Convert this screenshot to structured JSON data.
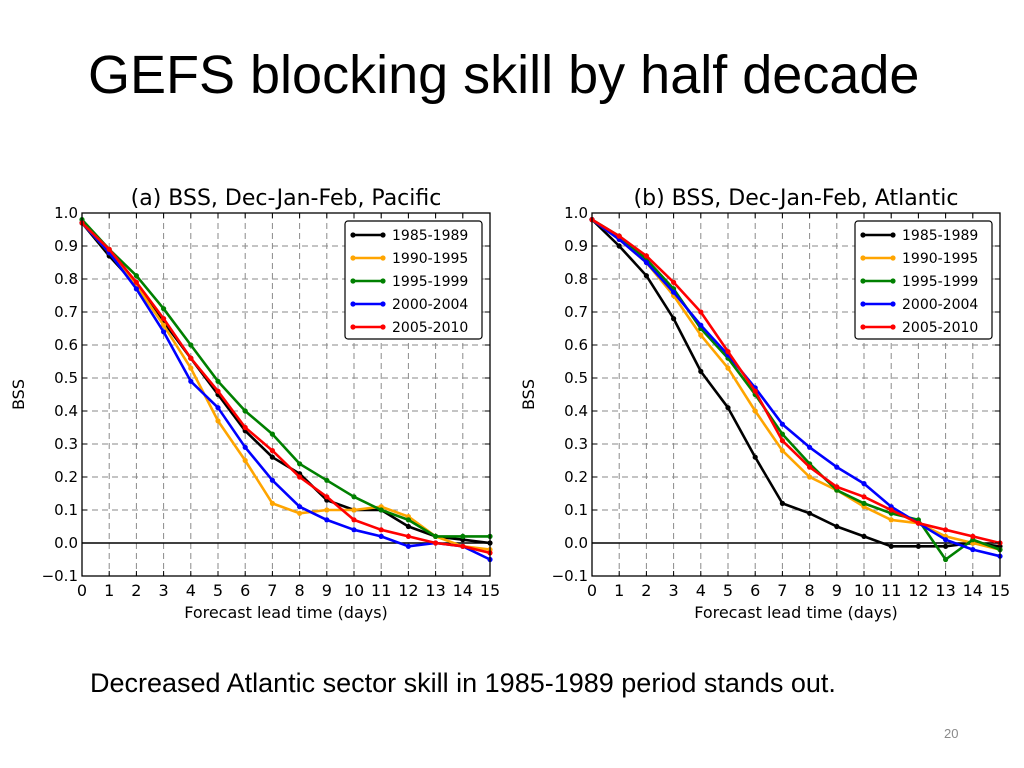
{
  "slide": {
    "title": "GEFS blocking skill by half decade",
    "caption": "Decreased Atlantic sector skill in 1985-1989 period stands out.",
    "page_number": "20"
  },
  "chart_data": [
    {
      "type": "line",
      "title": "(a) BSS, Dec-Jan-Feb, Pacific",
      "xlabel": "Forecast lead time (days)",
      "ylabel": "BSS",
      "xlim": [
        0,
        15
      ],
      "ylim": [
        -0.1,
        1.0
      ],
      "xticks": [
        "0",
        "1",
        "2",
        "3",
        "4",
        "5",
        "6",
        "7",
        "8",
        "9",
        "10",
        "11",
        "12",
        "13",
        "14",
        "15"
      ],
      "yticks": [
        "−0.1",
        "0.0",
        "0.1",
        "0.2",
        "0.3",
        "0.4",
        "0.5",
        "0.6",
        "0.7",
        "0.8",
        "0.9",
        "1.0"
      ],
      "grid": true,
      "legend": "top-right",
      "x": [
        0,
        1,
        2,
        3,
        4,
        5,
        6,
        7,
        8,
        9,
        10,
        11,
        12,
        13,
        14,
        15
      ],
      "series": [
        {
          "name": "1985-1989",
          "color": "#000000",
          "values": [
            0.97,
            0.87,
            0.78,
            0.67,
            0.56,
            0.45,
            0.34,
            0.26,
            0.21,
            0.13,
            0.1,
            0.1,
            0.05,
            0.02,
            0.01,
            0.0
          ]
        },
        {
          "name": "1990-1995",
          "color": "#ffa500",
          "values": [
            0.97,
            0.88,
            0.78,
            0.66,
            0.53,
            0.37,
            0.25,
            0.12,
            0.09,
            0.1,
            0.1,
            0.11,
            0.08,
            0.02,
            -0.01,
            -0.02
          ]
        },
        {
          "name": "1995-1999",
          "color": "#008000",
          "values": [
            0.98,
            0.89,
            0.81,
            0.71,
            0.6,
            0.49,
            0.4,
            0.33,
            0.24,
            0.19,
            0.14,
            0.1,
            0.07,
            0.02,
            0.02,
            0.02
          ]
        },
        {
          "name": "2000-2004",
          "color": "#0000ff",
          "values": [
            0.97,
            0.88,
            0.77,
            0.64,
            0.49,
            0.41,
            0.29,
            0.19,
            0.11,
            0.07,
            0.04,
            0.02,
            -0.01,
            0.0,
            -0.01,
            -0.05
          ]
        },
        {
          "name": "2005-2010",
          "color": "#ff0000",
          "values": [
            0.97,
            0.89,
            0.79,
            0.68,
            0.56,
            0.46,
            0.35,
            0.28,
            0.2,
            0.14,
            0.07,
            0.04,
            0.02,
            0.0,
            -0.01,
            -0.03
          ]
        }
      ]
    },
    {
      "type": "line",
      "title": "(b) BSS, Dec-Jan-Feb, Atlantic",
      "xlabel": "Forecast lead time (days)",
      "ylabel": "BSS",
      "xlim": [
        0,
        15
      ],
      "ylim": [
        -0.1,
        1.0
      ],
      "xticks": [
        "0",
        "1",
        "2",
        "3",
        "4",
        "5",
        "6",
        "7",
        "8",
        "9",
        "10",
        "11",
        "12",
        "13",
        "14",
        "15"
      ],
      "yticks": [
        "−0.1",
        "0.0",
        "0.1",
        "0.2",
        "0.3",
        "0.4",
        "0.5",
        "0.6",
        "0.7",
        "0.8",
        "0.9",
        "1.0"
      ],
      "grid": true,
      "legend": "top-right",
      "x": [
        0,
        1,
        2,
        3,
        4,
        5,
        6,
        7,
        8,
        9,
        10,
        11,
        12,
        13,
        14,
        15
      ],
      "series": [
        {
          "name": "1985-1989",
          "color": "#000000",
          "values": [
            0.98,
            0.9,
            0.81,
            0.68,
            0.52,
            0.41,
            0.26,
            0.12,
            0.09,
            0.05,
            0.02,
            -0.01,
            -0.01,
            -0.01,
            0.0,
            -0.01
          ]
        },
        {
          "name": "1990-1995",
          "color": "#ffa500",
          "values": [
            0.98,
            0.92,
            0.85,
            0.75,
            0.63,
            0.53,
            0.4,
            0.28,
            0.2,
            0.16,
            0.11,
            0.07,
            0.06,
            0.02,
            0.0,
            -0.02
          ]
        },
        {
          "name": "1995-1999",
          "color": "#008000",
          "values": [
            0.98,
            0.93,
            0.86,
            0.77,
            0.65,
            0.56,
            0.45,
            0.33,
            0.24,
            0.16,
            0.12,
            0.09,
            0.07,
            -0.05,
            0.01,
            -0.02
          ]
        },
        {
          "name": "2000-2004",
          "color": "#0000ff",
          "values": [
            0.98,
            0.92,
            0.85,
            0.76,
            0.66,
            0.57,
            0.47,
            0.36,
            0.29,
            0.23,
            0.18,
            0.11,
            0.06,
            0.01,
            -0.02,
            -0.04
          ]
        },
        {
          "name": "2005-2010",
          "color": "#ff0000",
          "values": [
            0.98,
            0.93,
            0.87,
            0.79,
            0.7,
            0.58,
            0.46,
            0.31,
            0.23,
            0.17,
            0.14,
            0.1,
            0.06,
            0.04,
            0.02,
            0.0
          ]
        }
      ]
    }
  ]
}
